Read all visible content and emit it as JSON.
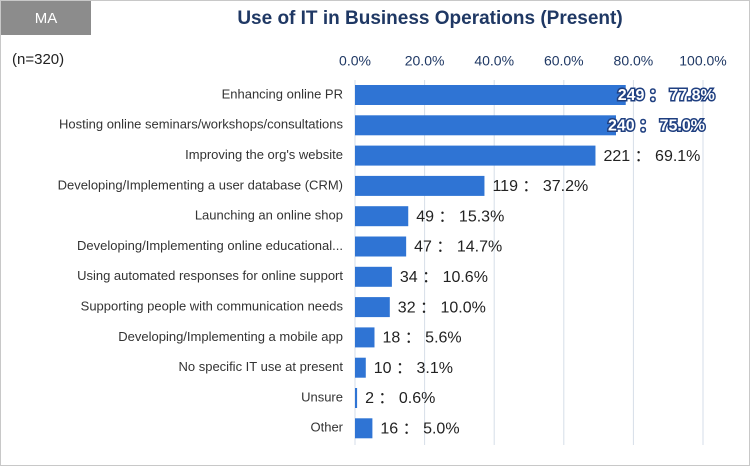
{
  "chart_data": {
    "type": "bar",
    "orientation": "horizontal",
    "title": "Use of IT in Business Operations (Present)",
    "badge": "MA",
    "note": "(n=320)",
    "categories": [
      "Enhancing online PR",
      "Hosting online seminars/workshops/consultations",
      "Improving the org's website",
      "Developing/Implementing a user database (CRM)",
      "Launching an online shop",
      "Developing/Implementing online educational...",
      "Using automated responses for online support",
      "Supporting people with communication needs",
      "Developing/Implementing a mobile app",
      "No specific IT use at present",
      "Unsure",
      "Other"
    ],
    "values": [
      77.8,
      75.0,
      69.1,
      37.2,
      15.3,
      14.7,
      10.6,
      10.0,
      5.6,
      3.1,
      0.6,
      5.0
    ],
    "value_labels": [
      "249 ： 77.8%",
      "240 ： 75.0%",
      "221 ： 69.1%",
      "119 ： 37.2%",
      "49 ： 15.3%",
      "47 ： 14.7%",
      "34 ： 10.6%",
      "32 ： 10.0%",
      "18 ： 5.6%",
      "10 ： 3.1%",
      "2 ： 0.6%",
      "16 ： 5.0%"
    ],
    "color": "#2f74d4",
    "xlim": [
      0,
      100
    ],
    "xticks": [
      {
        "value": 0,
        "label": "0.0%"
      },
      {
        "value": 20,
        "label": "20.0%"
      },
      {
        "value": 40,
        "label": "40.0%"
      },
      {
        "value": 60,
        "label": "60.0%"
      },
      {
        "value": 80,
        "label": "80.0%"
      },
      {
        "value": 100,
        "label": "100.0%"
      }
    ],
    "grid": true
  }
}
